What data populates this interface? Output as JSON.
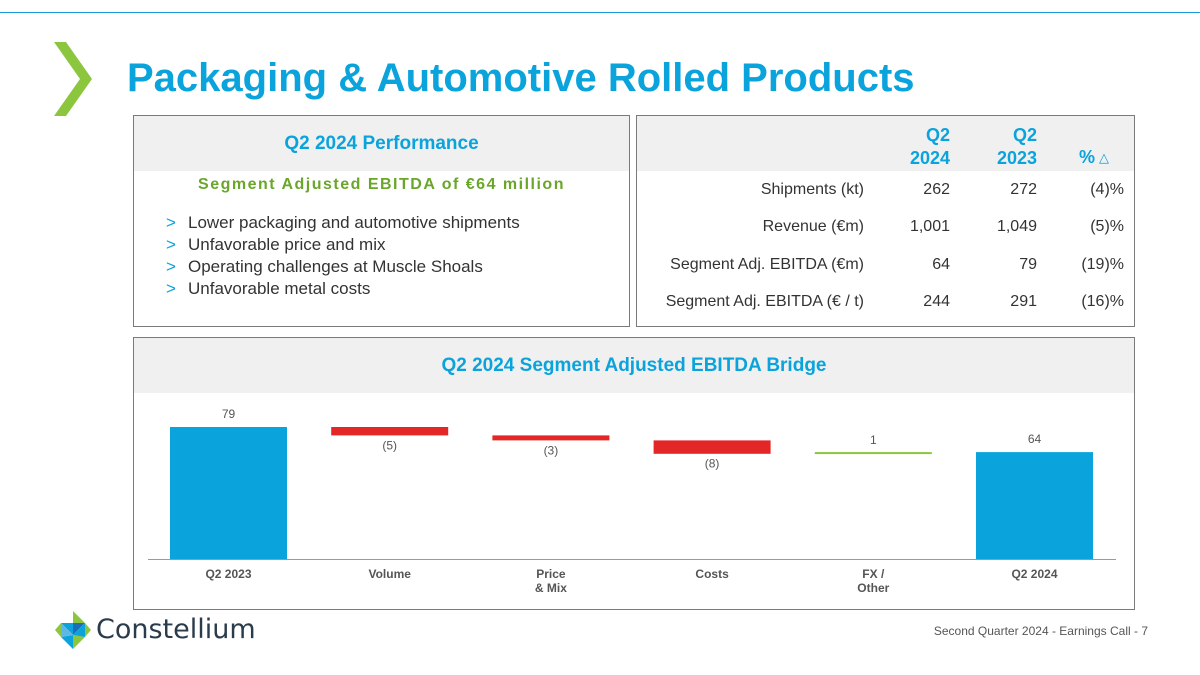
{
  "title": "Packaging & Automotive Rolled Products",
  "performance": {
    "heading": "Q2 2024 Performance",
    "subheading": "Segment Adjusted EBITDA of €64 million",
    "bullets": [
      "Lower packaging and automotive shipments",
      "Unfavorable price and mix",
      "Operating challenges at Muscle Shoals",
      "Unfavorable metal costs"
    ],
    "bullet_marker": ">"
  },
  "kpi_table": {
    "headers": {
      "q2_2024": [
        "Q2",
        "2024"
      ],
      "q2_2023": [
        "Q2",
        "2023"
      ],
      "pct": "%",
      "pct_symbol": "△"
    },
    "rows": [
      {
        "label": "Shipments (kt)",
        "q2_2024": "262",
        "q2_2023": "272",
        "pct": "(4)%"
      },
      {
        "label": "Revenue (€m)",
        "q2_2024": "1,001",
        "q2_2023": "1,049",
        "pct": "(5)%"
      },
      {
        "label": "Segment Adj. EBITDA (€m)",
        "q2_2024": "64",
        "q2_2023": "79",
        "pct": "(19)%"
      },
      {
        "label": "Segment Adj. EBITDA (€ / t)",
        "q2_2024": "244",
        "q2_2023": "291",
        "pct": "(16)%"
      }
    ]
  },
  "chart_data": {
    "type": "bar",
    "subtype": "waterfall",
    "title": "Q2 2024 Segment Adjusted EBITDA Bridge",
    "categories": [
      [
        "Q2 2023"
      ],
      [
        "Volume"
      ],
      [
        "Price",
        "& Mix"
      ],
      [
        "Costs"
      ],
      [
        "FX /",
        "Other"
      ],
      [
        "Q2 2024"
      ]
    ],
    "values": [
      79,
      -5,
      -3,
      -8,
      1,
      64
    ],
    "value_labels": [
      "79",
      "(5)",
      "(3)",
      "(8)",
      "1",
      "64"
    ],
    "kinds": [
      "total",
      "delta",
      "delta",
      "delta",
      "delta",
      "total"
    ],
    "colors": {
      "total": "#0aa3dc",
      "decrease": "#e32626",
      "increase": "#8cc63f"
    },
    "ylim": [
      0,
      79
    ]
  },
  "brand": {
    "name": "Constellium"
  },
  "footer": "Second Quarter 2024 -  Earnings Call - 7"
}
